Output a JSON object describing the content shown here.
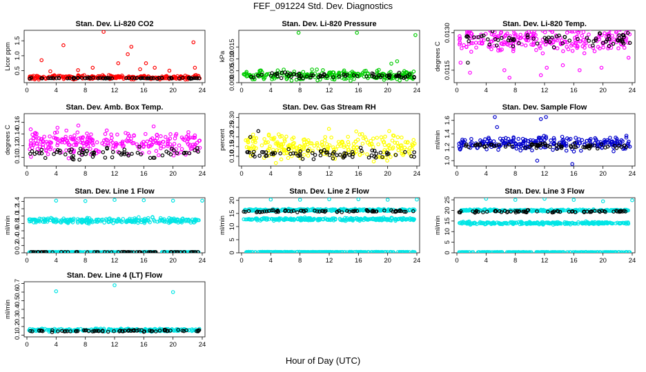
{
  "figure": {
    "title": "FEF_091224  Std. Dev. Diagnostics",
    "xlabel": "Hour of Day (UTC)"
  },
  "chart_data": [
    {
      "type": "scatter",
      "title": "Stan. Dev. Li-820 CO2",
      "ylabel": "Licor ppm",
      "xlim": [
        0,
        24
      ],
      "ylim": [
        0.1,
        1.85
      ],
      "xticks": [
        0,
        4,
        8,
        12,
        16,
        20,
        24
      ],
      "yticks": [
        0.5,
        1.0,
        1.5
      ],
      "ytick_labels": [
        "0.5",
        "1.0",
        "1.5"
      ],
      "series": [
        {
          "color": "#ff0000",
          "base": 0.28,
          "spread": 0.08,
          "outliers": [
            [
              2,
              0.85
            ],
            [
              3.2,
              0.48
            ],
            [
              5,
              1.35
            ],
            [
              7,
              0.52
            ],
            [
              9,
              0.6
            ],
            [
              10.5,
              1.8
            ],
            [
              12.5,
              0.75
            ],
            [
              13.8,
              1.05
            ],
            [
              14.3,
              1.3
            ],
            [
              15.5,
              0.55
            ],
            [
              16.3,
              0.75
            ],
            [
              17.5,
              0.6
            ],
            [
              19.5,
              0.5
            ],
            [
              22.8,
              1.45
            ],
            [
              23,
              0.6
            ]
          ]
        },
        {
          "color": "#000000",
          "base": 0.25,
          "spread": 0.02,
          "outliers": []
        }
      ]
    },
    {
      "type": "scatter",
      "title": "Stan. Dev. Li-820 Pressure",
      "ylabel": "kPa",
      "xlim": [
        0,
        24
      ],
      "ylim": [
        0,
        0.022
      ],
      "xticks": [
        0,
        4,
        8,
        12,
        16,
        20,
        24
      ],
      "yticks": [
        0.0,
        0.005,
        0.01,
        0.015
      ],
      "ytick_labels": [
        "0.000",
        "0.005",
        "0.010",
        "0.015"
      ],
      "series": [
        {
          "color": "#00cc00",
          "base": 0.003,
          "spread": 0.0025,
          "outliers": [
            [
              7.8,
              0.021
            ],
            [
              15.8,
              0.021
            ],
            [
              23.8,
              0.02
            ],
            [
              20.5,
              0.008
            ],
            [
              21.3,
              0.009
            ]
          ]
        },
        {
          "color": "#000000",
          "base": 0.003,
          "spread": 0.0015,
          "outliers": []
        }
      ]
    },
    {
      "type": "scatter",
      "title": "Stan. Dev. Li-820 Temp.",
      "ylabel": "degrees C",
      "xlim": [
        0,
        24
      ],
      "ylim": [
        0.011,
        0.0131
      ],
      "xticks": [
        0,
        4,
        8,
        12,
        16,
        20,
        24
      ],
      "yticks": [
        0.0115,
        0.013
      ],
      "ytick_labels": [
        "0.0115",
        "0.0130"
      ],
      "series": [
        {
          "color": "#ff00ff",
          "base": 0.01275,
          "spread": 0.0006,
          "outliers": [
            [
              0.5,
              0.0118
            ],
            [
              1.8,
              0.0114
            ],
            [
              6.5,
              0.0115
            ],
            [
              7.2,
              0.0112
            ],
            [
              11.5,
              0.0113
            ],
            [
              12.3,
              0.0116
            ],
            [
              14.5,
              0.0117
            ],
            [
              16.8,
              0.0115
            ],
            [
              19.8,
              0.0116
            ],
            [
              23.5,
              0.012
            ]
          ]
        },
        {
          "color": "#000000",
          "base": 0.01275,
          "spread": 0.0004,
          "outliers": [
            [
              1.5,
              0.0118
            ]
          ]
        }
      ]
    },
    {
      "type": "scatter",
      "title": "Stan. Dev. Amb. Box Temp.",
      "ylabel": "degrees C",
      "xlim": [
        0,
        24
      ],
      "ylim": [
        0.085,
        0.175
      ],
      "xticks": [
        0,
        4,
        8,
        12,
        16,
        20,
        24
      ],
      "yticks": [
        0.1,
        0.12,
        0.14,
        0.16
      ],
      "ytick_labels": [
        "0.10",
        "0.12",
        "0.14",
        "0.16"
      ],
      "series": [
        {
          "color": "#ff00ff",
          "base": 0.125,
          "spread": 0.025,
          "outliers": []
        },
        {
          "color": "#000000",
          "base": 0.108,
          "spread": 0.012,
          "outliers": []
        }
      ]
    },
    {
      "type": "scatter",
      "title": "Stan. Dev. Gas Stream RH",
      "ylabel": "percent",
      "xlim": [
        0,
        24
      ],
      "ylim": [
        0.05,
        0.32
      ],
      "xticks": [
        0,
        4,
        8,
        12,
        16,
        20,
        24
      ],
      "yticks": [
        0.1,
        0.15,
        0.2,
        0.25,
        0.3
      ],
      "ytick_labels": [
        "0.10",
        "0.15",
        "0.20",
        "0.25",
        "0.30"
      ],
      "series": [
        {
          "color": "#ffff00",
          "base": 0.15,
          "spread": 0.08,
          "outliers": []
        },
        {
          "color": "#000000",
          "base": 0.11,
          "spread": 0.03,
          "outliers": [
            [
              1.2,
              0.2
            ],
            [
              2.3,
              0.23
            ]
          ]
        }
      ]
    },
    {
      "type": "scatter",
      "title": "Stan. Dev. Sample Flow",
      "ylabel": "ml/min",
      "xlim": [
        0,
        24
      ],
      "ylim": [
        0.92,
        1.7
      ],
      "xticks": [
        0,
        4,
        8,
        12,
        16,
        20,
        24
      ],
      "yticks": [
        1.0,
        1.2,
        1.4,
        1.6
      ],
      "ytick_labels": [
        "1.0",
        "1.2",
        "1.4",
        "1.6"
      ],
      "series": [
        {
          "color": "#0000cc",
          "base": 1.26,
          "spread": 0.12,
          "outliers": [
            [
              5.2,
              1.65
            ],
            [
              11.5,
              1.62
            ],
            [
              12.2,
              1.65
            ],
            [
              11,
              1.0
            ],
            [
              15.8,
              0.95
            ],
            [
              5.5,
              1.5
            ]
          ]
        },
        {
          "color": "#000000",
          "base": 1.22,
          "spread": 0.05,
          "outliers": []
        }
      ]
    },
    {
      "type": "scatter",
      "title": "Stan. Dev. Line 1 Flow",
      "ylabel": "ml/min",
      "xlim": [
        0,
        24
      ],
      "ylim": [
        0,
        1.5
      ],
      "xticks": [
        0,
        4,
        8,
        12,
        16,
        20,
        24
      ],
      "yticks": [
        0.0,
        0.2,
        0.4,
        0.6,
        0.8,
        1.0,
        1.2,
        1.4
      ],
      "ytick_labels": [
        "0",
        "0.2",
        "0.4",
        "0.6",
        "0.8",
        "1.0",
        "1.2",
        "1.4"
      ],
      "series": [
        {
          "color": "#00e5e5",
          "base": 0.88,
          "spread": 0.08,
          "outliers": [
            [
              4,
              1.42
            ],
            [
              8,
              1.41
            ],
            [
              12,
              1.44
            ],
            [
              16,
              1.43
            ],
            [
              20,
              1.42
            ],
            [
              24,
              1.42
            ]
          ]
        },
        {
          "color": "#00e5e5",
          "base": 0.02,
          "spread": 0.005,
          "outliers": []
        },
        {
          "color": "#000000",
          "base": 0.02,
          "spread": 0.005,
          "outliers": []
        }
      ]
    },
    {
      "type": "scatter",
      "title": "Stan. Dev. Line 2 Flow",
      "ylabel": "ml/min",
      "xlim": [
        0,
        24
      ],
      "ylim": [
        0,
        21
      ],
      "xticks": [
        0,
        4,
        8,
        12,
        16,
        20,
        24
      ],
      "yticks": [
        0,
        5,
        10,
        15,
        20
      ],
      "ytick_labels": [
        "0",
        "5",
        "10",
        "15",
        "20"
      ],
      "series": [
        {
          "color": "#00e5e5",
          "base": 12.8,
          "spread": 0.6,
          "outliers": []
        },
        {
          "color": "#00e5e5",
          "base": 16.3,
          "spread": 0.5,
          "outliers": [
            [
              4,
              20.3
            ],
            [
              8,
              20.2
            ],
            [
              12,
              20.4
            ],
            [
              16,
              20.4
            ],
            [
              20,
              20.2
            ],
            [
              24,
              20.3
            ]
          ]
        },
        {
          "color": "#00e5e5",
          "base": 0.3,
          "spread": 0.1,
          "outliers": []
        },
        {
          "color": "#000000",
          "base": 15.9,
          "spread": 0.5,
          "outliers": []
        }
      ]
    },
    {
      "type": "scatter",
      "title": "Stan. Dev. Line 3 Flow",
      "ylabel": "ml/min",
      "xlim": [
        0,
        24
      ],
      "ylim": [
        0,
        26
      ],
      "xticks": [
        0,
        4,
        8,
        12,
        16,
        20,
        24
      ],
      "yticks": [
        0,
        5,
        10,
        15,
        20,
        25
      ],
      "ytick_labels": [
        "0",
        "5",
        "10",
        "15",
        "20",
        "25"
      ],
      "series": [
        {
          "color": "#00e5e5",
          "base": 14.0,
          "spread": 0.7,
          "outliers": []
        },
        {
          "color": "#00e5e5",
          "base": 20.0,
          "spread": 0.6,
          "outliers": [
            [
              4,
              25.5
            ],
            [
              8,
              25.0
            ],
            [
              12,
              25.5
            ],
            [
              16,
              25.0
            ],
            [
              20,
              24.3
            ],
            [
              24,
              24.8
            ]
          ]
        },
        {
          "color": "#00e5e5",
          "base": 0.3,
          "spread": 0.1,
          "outliers": []
        },
        {
          "color": "#000000",
          "base": 19.5,
          "spread": 0.6,
          "outliers": []
        }
      ]
    },
    {
      "type": "scatter",
      "title": "Stan. Dev. Line 4 (LT) Flow",
      "ylabel": "ml/min",
      "xlim": [
        0,
        24
      ],
      "ylim": [
        0.08,
        0.72
      ],
      "xticks": [
        0,
        4,
        8,
        12,
        16,
        20,
        24
      ],
      "yticks": [
        0.1,
        0.2,
        0.3,
        0.4,
        0.5,
        0.6,
        0.7
      ],
      "ytick_labels": [
        "0.1",
        "0.2",
        "0.3",
        "0.4",
        "0.5",
        "0.6",
        "0.7"
      ],
      "series": [
        {
          "color": "#00e5e5",
          "base": 0.16,
          "spread": 0.02,
          "outliers": [
            [
              4,
              0.61
            ],
            [
              12,
              0.68
            ],
            [
              20,
              0.6
            ]
          ]
        },
        {
          "color": "#000000",
          "base": 0.15,
          "spread": 0.015,
          "outliers": []
        }
      ]
    }
  ]
}
